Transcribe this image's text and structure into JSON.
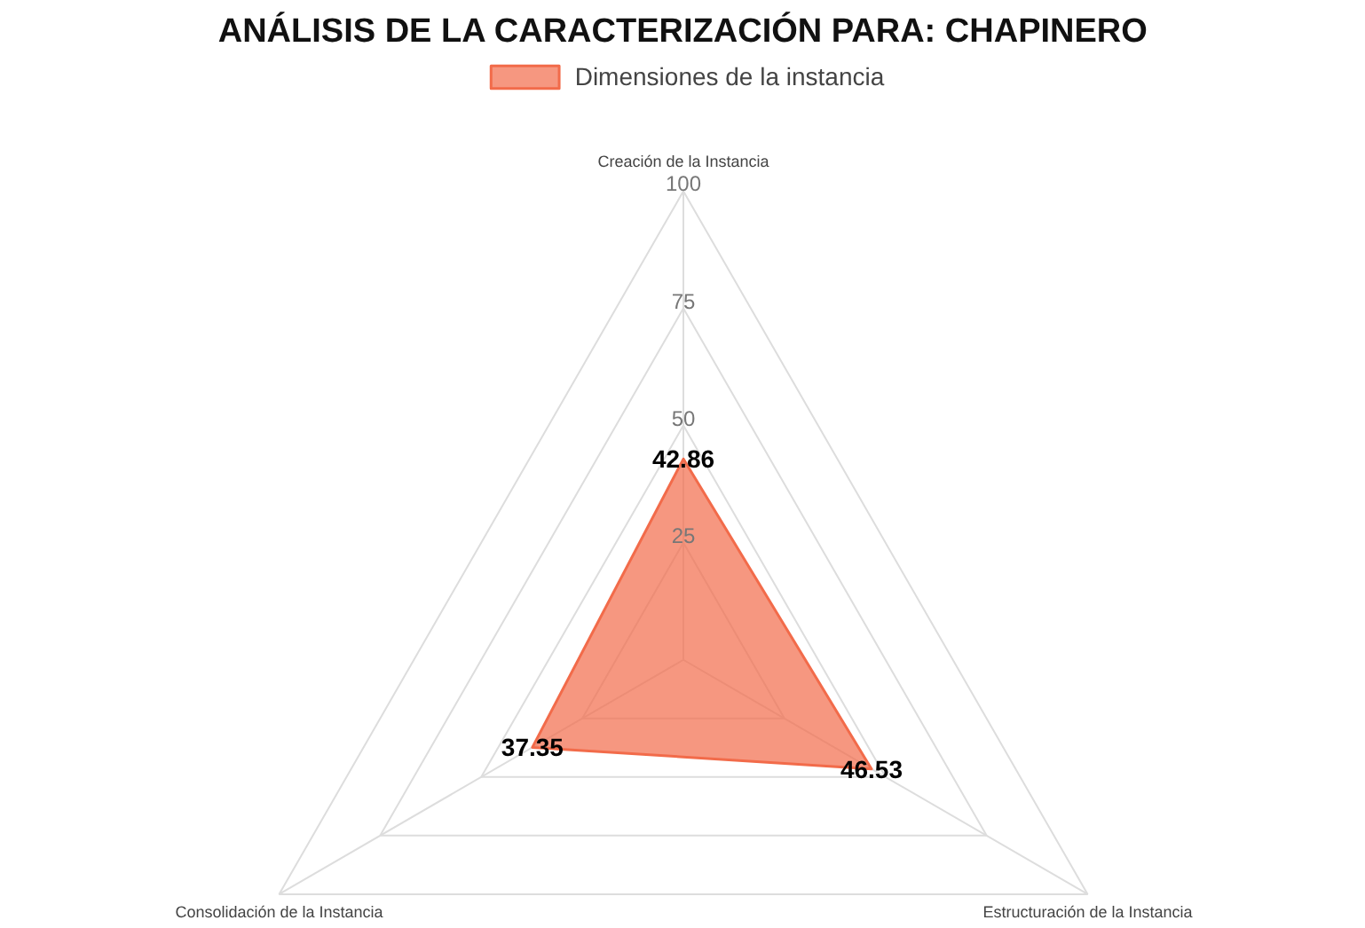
{
  "chart_data": {
    "type": "radar",
    "title": "ANÁLISIS DE LA CARACTERIZACIÓN PARA: CHAPINERO",
    "categories": [
      "Creación de la Instancia",
      "Estructuración de la Instancia",
      "Consolidación de la Instancia"
    ],
    "series": [
      {
        "name": "Dimensiones de la instancia",
        "color": "#f26b4a",
        "values": [
          42.86,
          46.53,
          37.35
        ]
      }
    ],
    "ylim": [
      0,
      100
    ],
    "yticks": [
      25,
      50,
      75,
      100
    ],
    "data_labels": true,
    "legend": "top",
    "grid": true
  }
}
